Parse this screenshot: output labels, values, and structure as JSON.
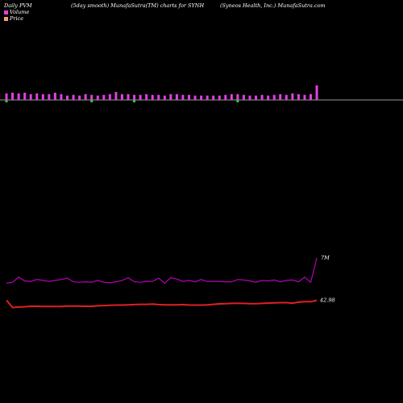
{
  "header": {
    "left": "Daily PVM",
    "center": "(5day smooth) MunafaSutra(TM) charts for SYNH",
    "right": "(Syneos Health, Inc.) MunafaSutra.com"
  },
  "legend": {
    "volume_label": "Volume",
    "price_label": "Price",
    "volume_color": "#e040e0",
    "price_color": "#f4a07a"
  },
  "chart_data": {
    "type": "bar",
    "title": "",
    "volume": {
      "name": "Volume",
      "color": "#e040e0",
      "down_color": "#33cc33",
      "values": [
        9,
        10,
        9,
        10,
        8,
        9,
        8,
        8,
        10,
        8,
        6,
        7,
        6,
        8,
        7,
        6,
        7,
        8,
        11,
        8,
        8,
        7,
        7,
        8,
        7,
        7,
        6,
        8,
        8,
        7,
        7,
        6,
        6,
        6,
        6,
        6,
        7,
        8,
        8,
        7,
        6,
        6,
        7,
        6,
        7,
        8,
        7,
        9,
        8,
        7,
        8,
        20
      ],
      "down_days": [
        0,
        14,
        21,
        38
      ]
    },
    "pvm_line": {
      "name": "PVM",
      "color": "#b800b8",
      "end_label": "7M",
      "values": [
        45,
        47,
        58,
        50,
        49,
        53,
        51,
        49,
        51,
        53,
        56,
        48,
        47,
        48,
        47,
        51,
        47,
        46,
        48,
        51,
        57,
        48,
        47,
        49,
        49,
        56,
        45,
        57,
        54,
        49,
        51,
        48,
        53,
        49,
        49,
        49,
        48,
        48,
        53,
        52,
        50,
        47,
        51,
        50,
        52,
        48,
        51,
        52,
        48,
        58,
        47,
        100
      ]
    },
    "price_line": {
      "name": "Price",
      "color": "#e02020",
      "end_label": "42.98",
      "values": [
        43.0,
        40.0,
        40.2,
        40.3,
        40.5,
        40.5,
        40.4,
        40.4,
        40.4,
        40.4,
        40.6,
        40.6,
        40.6,
        40.5,
        40.5,
        40.7,
        40.8,
        40.9,
        41.0,
        41.0,
        41.1,
        41.2,
        41.3,
        41.3,
        41.4,
        41.2,
        41.1,
        41.1,
        41.1,
        41.2,
        41.0,
        41.0,
        41.0,
        41.1,
        41.3,
        41.5,
        41.6,
        41.7,
        41.7,
        41.7,
        41.6,
        41.6,
        41.7,
        41.8,
        41.9,
        42.0,
        42.0,
        41.8,
        42.2,
        42.4,
        42.4,
        42.98
      ]
    }
  }
}
